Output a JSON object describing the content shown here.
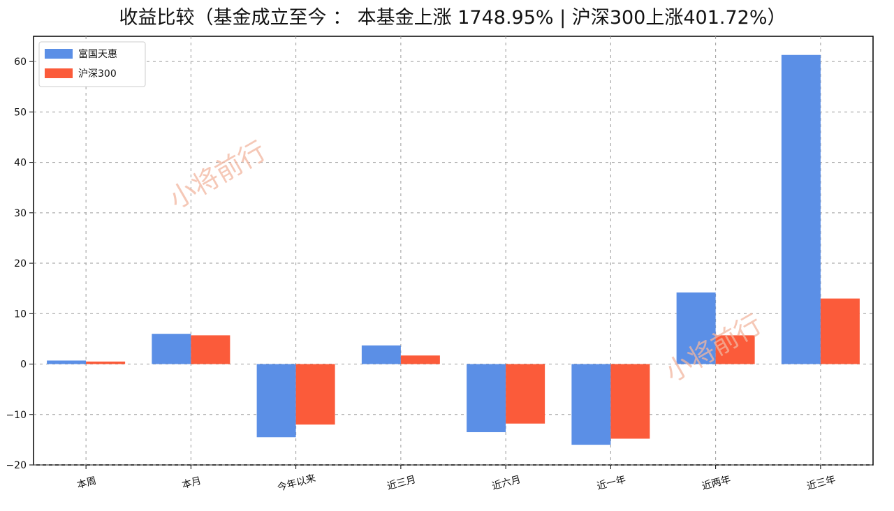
{
  "chart_data": {
    "type": "bar",
    "title": "收益比较（基金成立至今 ： 本基金上涨 1748.95% | 沪深300上涨401.72%）",
    "xlabel": "",
    "ylabel": "",
    "categories": [
      "本周",
      "本月",
      "今年以来",
      "近三月",
      "近六月",
      "近一年",
      "近两年",
      "近三年"
    ],
    "series": [
      {
        "name": "富国天惠",
        "color": "#5b8fe6",
        "values": [
          0.7,
          6.0,
          -14.5,
          3.7,
          -13.5,
          -16.0,
          14.2,
          61.3
        ]
      },
      {
        "name": "沪深300",
        "color": "#fb5b3a",
        "values": [
          0.5,
          5.7,
          -12.0,
          1.7,
          -11.8,
          -14.8,
          5.7,
          13.0
        ]
      }
    ],
    "ylim": [
      -20,
      65
    ],
    "yticks": [
      -20,
      -10,
      0,
      10,
      20,
      30,
      40,
      50,
      60
    ],
    "grid": true,
    "legend_position": "top-left"
  },
  "watermark": "小将前行"
}
